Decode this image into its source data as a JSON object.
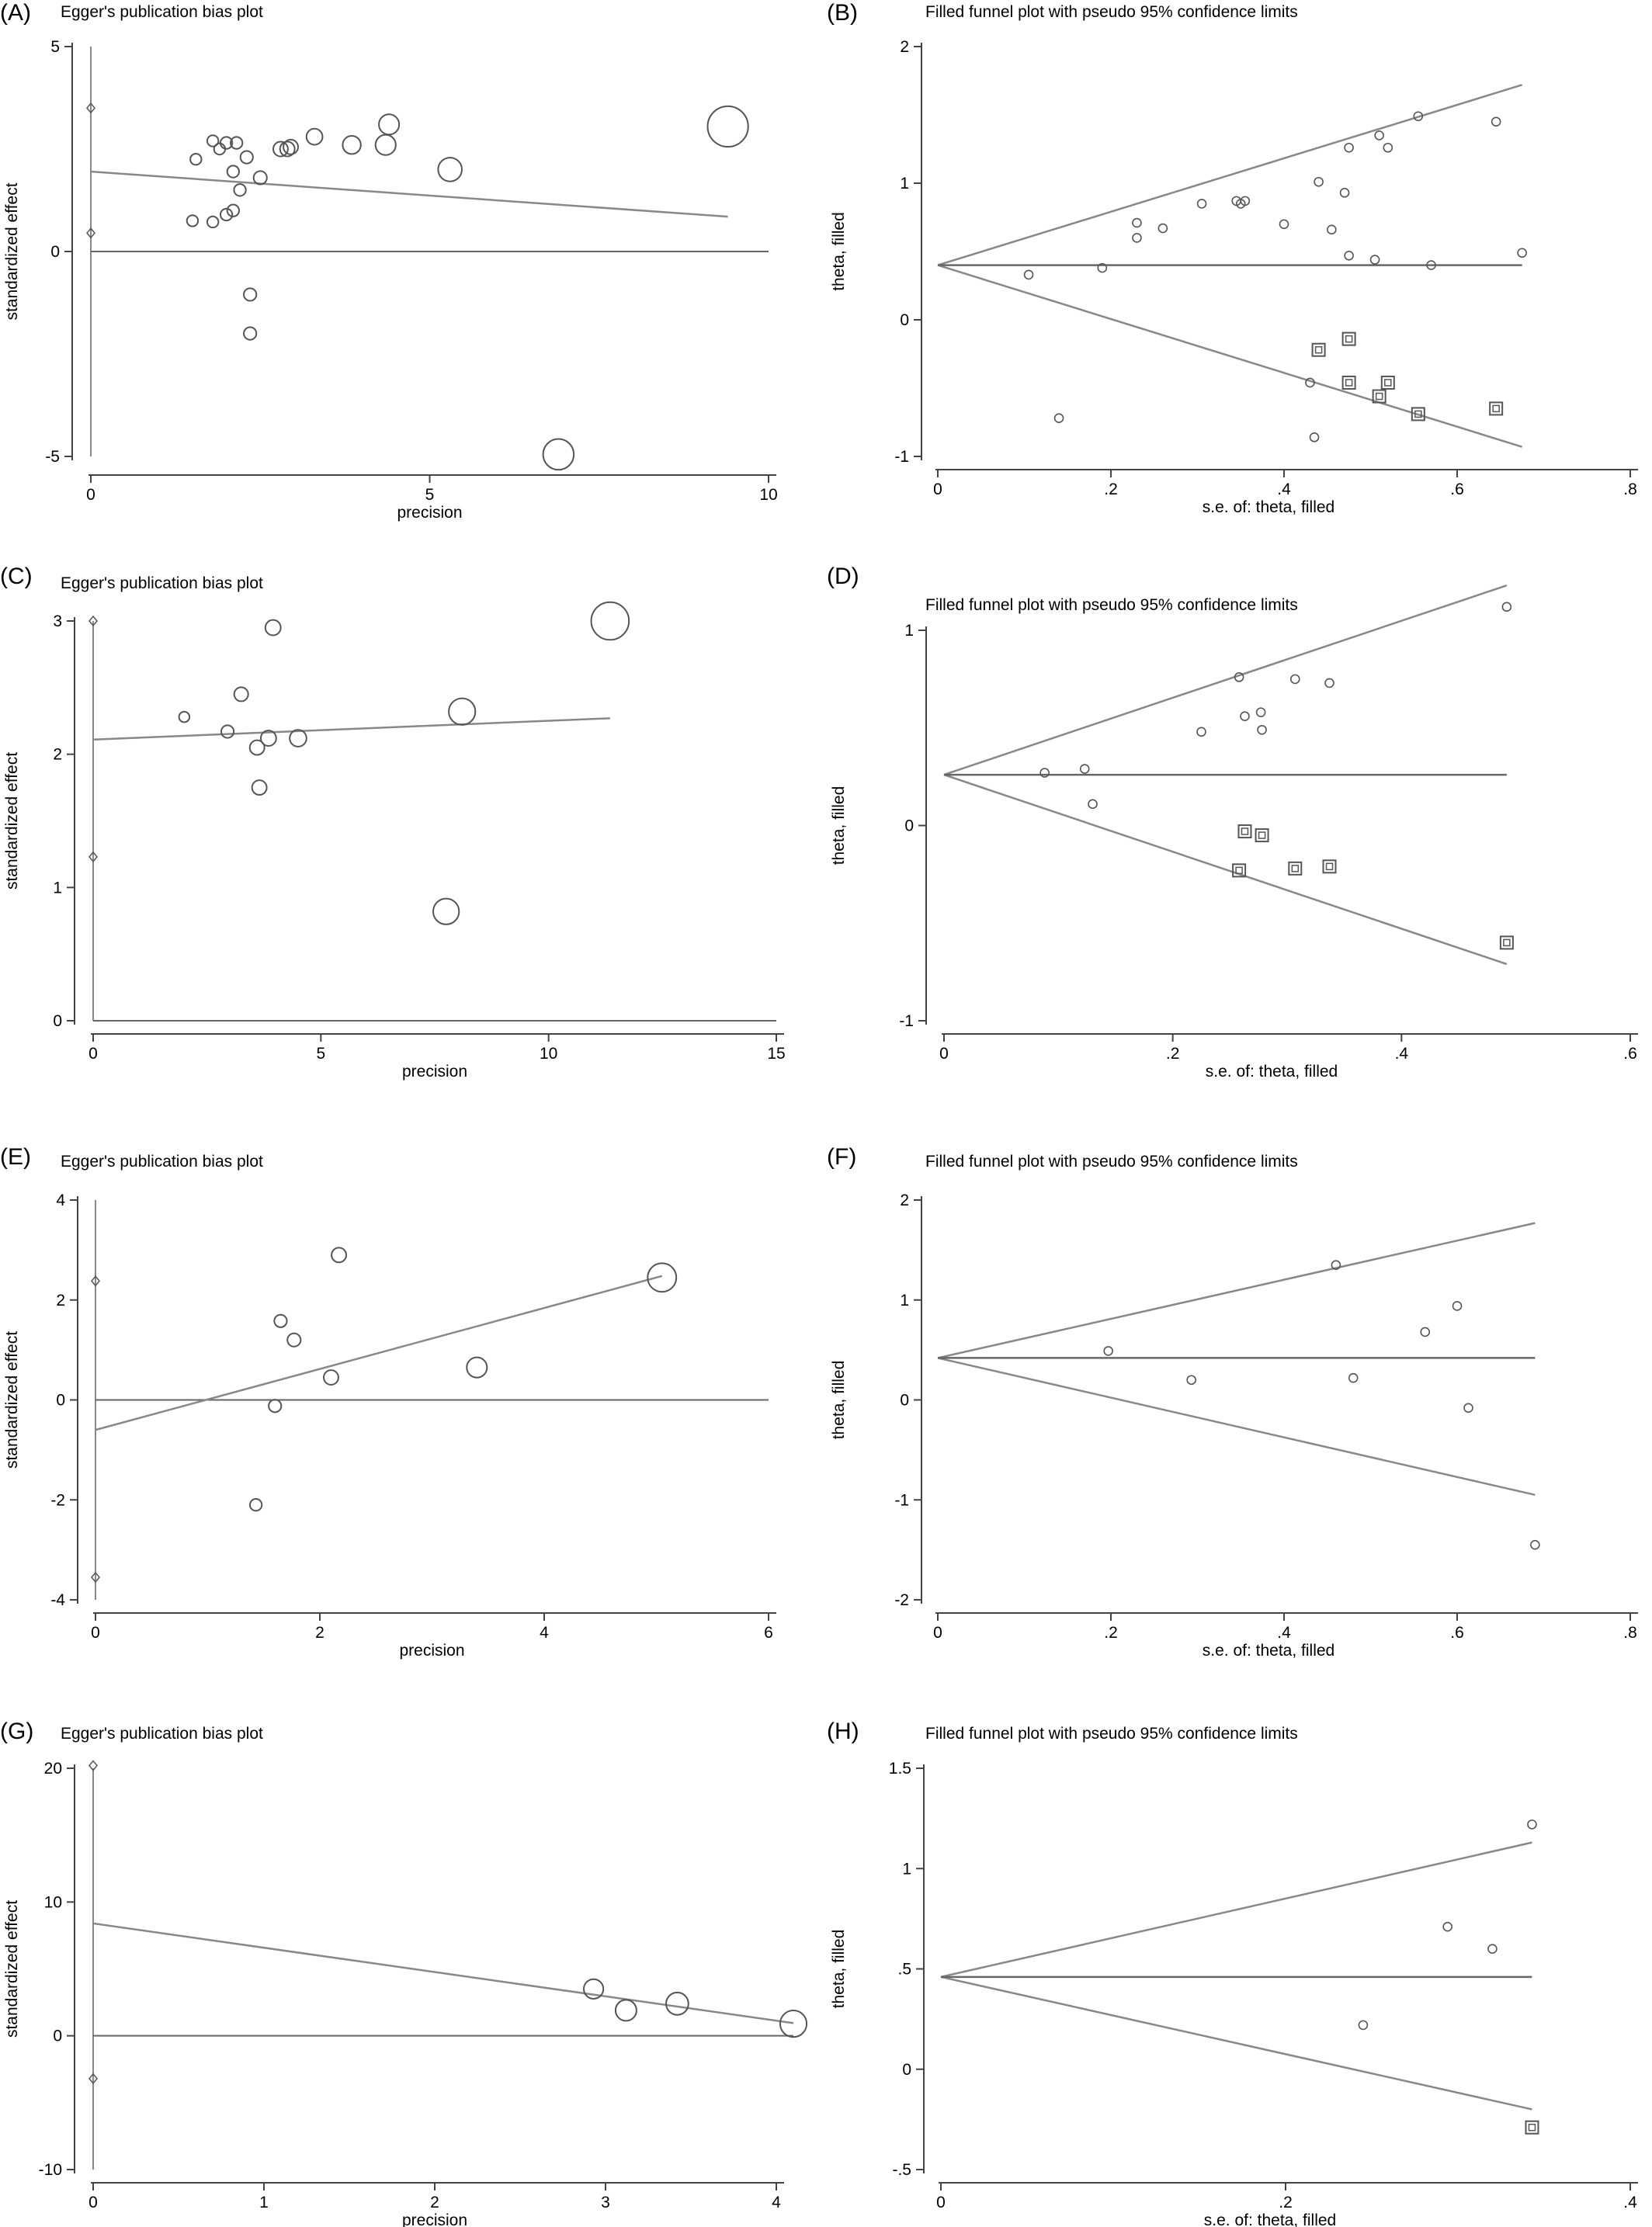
{
  "chart_data": [
    {
      "panel": "(A)",
      "type": "scatter",
      "title": "Egger's publication bias plot",
      "xlabel": "precision",
      "ylabel": "standardized effect",
      "xlim": [
        0,
        10
      ],
      "ylim": [
        -5,
        5
      ],
      "xticks": [
        0,
        5,
        10
      ],
      "yticks": [
        -5,
        0,
        5
      ],
      "points": [
        {
          "x": 1.5,
          "y": 0.75,
          "r": 0.8
        },
        {
          "x": 1.55,
          "y": 2.25,
          "r": 0.8
        },
        {
          "x": 1.8,
          "y": 0.72,
          "r": 0.8
        },
        {
          "x": 1.8,
          "y": 2.7,
          "r": 0.8
        },
        {
          "x": 1.9,
          "y": 2.5,
          "r": 0.8
        },
        {
          "x": 2.0,
          "y": 0.9,
          "r": 0.85
        },
        {
          "x": 2.0,
          "y": 2.65,
          "r": 0.85
        },
        {
          "x": 2.1,
          "y": 1.95,
          "r": 0.85
        },
        {
          "x": 2.1,
          "y": 1.0,
          "r": 0.85
        },
        {
          "x": 2.15,
          "y": 2.65,
          "r": 0.85
        },
        {
          "x": 2.2,
          "y": 1.5,
          "r": 0.85
        },
        {
          "x": 2.3,
          "y": 2.3,
          "r": 0.9
        },
        {
          "x": 2.35,
          "y": -1.05,
          "r": 0.9
        },
        {
          "x": 2.35,
          "y": -2.0,
          "r": 0.9
        },
        {
          "x": 2.5,
          "y": 1.8,
          "r": 0.95
        },
        {
          "x": 2.8,
          "y": 2.5,
          "r": 1.05
        },
        {
          "x": 2.9,
          "y": 2.5,
          "r": 1.05
        },
        {
          "x": 2.95,
          "y": 2.55,
          "r": 1.05
        },
        {
          "x": 3.3,
          "y": 2.8,
          "r": 1.15
        },
        {
          "x": 3.85,
          "y": 2.6,
          "r": 1.3
        },
        {
          "x": 4.35,
          "y": 2.6,
          "r": 1.45
        },
        {
          "x": 4.4,
          "y": 3.1,
          "r": 1.45
        },
        {
          "x": 5.3,
          "y": 2.0,
          "r": 1.7
        },
        {
          "x": 6.9,
          "y": -4.95,
          "r": 2.2
        },
        {
          "x": 9.4,
          "y": 3.05,
          "r": 2.9
        }
      ],
      "fit_line": {
        "x": [
          0,
          9.4
        ],
        "y": [
          1.95,
          0.85
        ]
      },
      "reference_line": {
        "x": [
          0,
          10
        ],
        "y": [
          0,
          0
        ]
      },
      "ci_markers": [
        {
          "x": 0,
          "y": 3.5
        },
        {
          "x": 0,
          "y": 0.45
        }
      ],
      "vertical_line": {
        "x": 0,
        "y": [
          -5,
          5
        ]
      }
    },
    {
      "panel": "(B)",
      "type": "scatter",
      "title": "Filled funnel plot with pseudo 95% confidence limits",
      "xlabel": "s.e. of: theta, filled",
      "ylabel": "theta, filled",
      "xlim": [
        0,
        0.8
      ],
      "ylim": [
        -1,
        2
      ],
      "xticks": [
        0,
        0.2,
        0.4,
        0.6,
        0.8
      ],
      "xtick_labels": [
        "0",
        ".2",
        ".4",
        ".6",
        ".8"
      ],
      "yticks": [
        -1,
        0,
        1,
        2
      ],
      "ytick_labels": [
        "-1",
        "0",
        "1",
        "2"
      ],
      "observed": [
        {
          "x": 0.105,
          "y": 0.33
        },
        {
          "x": 0.14,
          "y": -0.72
        },
        {
          "x": 0.19,
          "y": 0.38
        },
        {
          "x": 0.23,
          "y": 0.71
        },
        {
          "x": 0.23,
          "y": 0.6
        },
        {
          "x": 0.26,
          "y": 0.67
        },
        {
          "x": 0.305,
          "y": 0.85
        },
        {
          "x": 0.345,
          "y": 0.87
        },
        {
          "x": 0.35,
          "y": 0.85
        },
        {
          "x": 0.355,
          "y": 0.87
        },
        {
          "x": 0.4,
          "y": 0.7
        },
        {
          "x": 0.43,
          "y": -0.46
        },
        {
          "x": 0.435,
          "y": -0.86
        },
        {
          "x": 0.44,
          "y": 1.01
        },
        {
          "x": 0.455,
          "y": 0.66
        },
        {
          "x": 0.47,
          "y": 0.93
        },
        {
          "x": 0.475,
          "y": 1.26
        },
        {
          "x": 0.475,
          "y": 0.47
        },
        {
          "x": 0.505,
          "y": 0.44
        },
        {
          "x": 0.51,
          "y": 1.35
        },
        {
          "x": 0.52,
          "y": 1.26
        },
        {
          "x": 0.555,
          "y": 1.49
        },
        {
          "x": 0.57,
          "y": 0.4
        },
        {
          "x": 0.645,
          "y": 1.45
        },
        {
          "x": 0.675,
          "y": 0.49
        }
      ],
      "filled": [
        {
          "x": 0.44,
          "y": -0.22
        },
        {
          "x": 0.475,
          "y": -0.14
        },
        {
          "x": 0.475,
          "y": -0.46
        },
        {
          "x": 0.51,
          "y": -0.56
        },
        {
          "x": 0.52,
          "y": -0.46
        },
        {
          "x": 0.555,
          "y": -0.69
        },
        {
          "x": 0.645,
          "y": -0.65
        }
      ],
      "center": 0.4,
      "ci_end": {
        "x": 0.675,
        "upper": 1.72,
        "lower": -0.93
      }
    },
    {
      "panel": "(C)",
      "type": "scatter",
      "title": "Egger's publication bias plot",
      "xlabel": "precision",
      "ylabel": "standardized effect",
      "xlim": [
        0,
        15
      ],
      "ylim": [
        0,
        3
      ],
      "xticks": [
        0,
        5,
        10,
        15
      ],
      "yticks": [
        0,
        1,
        2,
        3
      ],
      "points": [
        {
          "x": 2.0,
          "y": 2.28,
          "r": 0.75
        },
        {
          "x": 2.95,
          "y": 2.17,
          "r": 0.9
        },
        {
          "x": 3.25,
          "y": 2.45,
          "r": 1.0
        },
        {
          "x": 3.6,
          "y": 2.05,
          "r": 1.05
        },
        {
          "x": 3.65,
          "y": 1.75,
          "r": 1.05
        },
        {
          "x": 3.85,
          "y": 2.12,
          "r": 1.1
        },
        {
          "x": 3.95,
          "y": 2.95,
          "r": 1.1
        },
        {
          "x": 4.5,
          "y": 2.12,
          "r": 1.2
        },
        {
          "x": 7.75,
          "y": 0.82,
          "r": 1.85
        },
        {
          "x": 8.1,
          "y": 2.32,
          "r": 1.9
        },
        {
          "x": 11.35,
          "y": 3.0,
          "r": 2.7
        }
      ],
      "fit_line": {
        "x": [
          0,
          11.35
        ],
        "y": [
          2.11,
          2.27
        ]
      },
      "reference_line": {
        "x": [
          0,
          15
        ],
        "y": [
          0,
          0
        ]
      },
      "ci_markers": [
        {
          "x": 0,
          "y": 3.0
        },
        {
          "x": 0,
          "y": 1.23
        }
      ],
      "vertical_line": {
        "x": 0,
        "y": [
          0,
          3
        ]
      }
    },
    {
      "panel": "(D)",
      "type": "scatter",
      "title": "Filled funnel plot with pseudo 95% confidence limits",
      "xlabel": "s.e. of: theta, filled",
      "ylabel": "theta, filled",
      "xlim": [
        0,
        0.6
      ],
      "ylim": [
        -1,
        1
      ],
      "xticks": [
        0,
        0.2,
        0.4,
        0.6
      ],
      "xtick_labels": [
        "0",
        ".2",
        ".4",
        ".6"
      ],
      "yticks": [
        -1,
        0,
        1
      ],
      "ytick_labels": [
        "-1",
        "0",
        "1"
      ],
      "observed": [
        {
          "x": 0.088,
          "y": 0.27
        },
        {
          "x": 0.123,
          "y": 0.29
        },
        {
          "x": 0.13,
          "y": 0.11
        },
        {
          "x": 0.225,
          "y": 0.48
        },
        {
          "x": 0.258,
          "y": 0.76
        },
        {
          "x": 0.263,
          "y": 0.56
        },
        {
          "x": 0.277,
          "y": 0.58
        },
        {
          "x": 0.278,
          "y": 0.49
        },
        {
          "x": 0.307,
          "y": 0.75
        },
        {
          "x": 0.337,
          "y": 0.73
        },
        {
          "x": 0.492,
          "y": 1.12
        }
      ],
      "filled": [
        {
          "x": 0.258,
          "y": -0.23
        },
        {
          "x": 0.263,
          "y": -0.03
        },
        {
          "x": 0.278,
          "y": -0.05
        },
        {
          "x": 0.307,
          "y": -0.22
        },
        {
          "x": 0.337,
          "y": -0.21
        },
        {
          "x": 0.492,
          "y": -0.6
        }
      ],
      "center": 0.26,
      "ci_end": {
        "x": 0.492,
        "upper": 1.23,
        "lower": -0.71
      }
    },
    {
      "panel": "(E)",
      "type": "scatter",
      "title": "Egger's publication bias plot",
      "xlabel": "precision",
      "ylabel": "standardized effect",
      "xlim": [
        0,
        6
      ],
      "ylim": [
        -4,
        4
      ],
      "xticks": [
        0,
        2,
        4,
        6
      ],
      "yticks": [
        -4,
        -2,
        0,
        2,
        4
      ],
      "points": [
        {
          "x": 1.43,
          "y": -2.1,
          "r": 0.85
        },
        {
          "x": 1.6,
          "y": -0.12,
          "r": 0.9
        },
        {
          "x": 1.65,
          "y": 1.58,
          "r": 0.9
        },
        {
          "x": 1.77,
          "y": 1.2,
          "r": 0.95
        },
        {
          "x": 2.1,
          "y": 0.45,
          "r": 1.05
        },
        {
          "x": 2.17,
          "y": 2.9,
          "r": 1.05
        },
        {
          "x": 3.4,
          "y": 0.65,
          "r": 1.45
        },
        {
          "x": 5.05,
          "y": 2.45,
          "r": 2.05
        }
      ],
      "fit_line": {
        "x": [
          0,
          5.05
        ],
        "y": [
          -0.6,
          2.48
        ]
      },
      "reference_line": {
        "x": [
          0,
          6
        ],
        "y": [
          0,
          0
        ]
      },
      "ci_markers": [
        {
          "x": 0,
          "y": 2.38
        },
        {
          "x": 0,
          "y": -3.55
        }
      ],
      "vertical_line": {
        "x": 0,
        "y": [
          -4,
          4
        ]
      }
    },
    {
      "panel": "(F)",
      "type": "scatter",
      "title": "Filled funnel plot with pseudo 95% confidence limits",
      "xlabel": "s.e. of: theta, filled",
      "ylabel": "theta, filled",
      "xlim": [
        0,
        0.8
      ],
      "ylim": [
        -2,
        2
      ],
      "xticks": [
        0,
        0.2,
        0.4,
        0.6,
        0.8
      ],
      "xtick_labels": [
        "0",
        ".2",
        ".4",
        ".6",
        ".8"
      ],
      "yticks": [
        -2,
        -1,
        0,
        1,
        2
      ],
      "ytick_labels": [
        "-2",
        "-1",
        "0",
        "1",
        "2"
      ],
      "observed": [
        {
          "x": 0.197,
          "y": 0.49
        },
        {
          "x": 0.293,
          "y": 0.2
        },
        {
          "x": 0.46,
          "y": 1.35
        },
        {
          "x": 0.48,
          "y": 0.22
        },
        {
          "x": 0.563,
          "y": 0.68
        },
        {
          "x": 0.6,
          "y": 0.94
        },
        {
          "x": 0.613,
          "y": -0.08
        },
        {
          "x": 0.69,
          "y": -1.45
        }
      ],
      "filled": [],
      "center": 0.42,
      "ci_end": {
        "x": 0.69,
        "upper": 1.77,
        "lower": -0.95
      }
    },
    {
      "panel": "(G)",
      "type": "scatter",
      "title": "Egger's publication bias plot",
      "xlabel": "precision",
      "ylabel": "standardized effect",
      "xlim": [
        0,
        4
      ],
      "ylim": [
        -10,
        20
      ],
      "xticks": [
        0,
        1,
        2,
        3,
        4
      ],
      "yticks": [
        -10,
        0,
        10,
        20
      ],
      "points": [
        {
          "x": 2.93,
          "y": 3.5,
          "r": 1.4
        },
        {
          "x": 3.12,
          "y": 1.9,
          "r": 1.5
        },
        {
          "x": 3.42,
          "y": 2.4,
          "r": 1.6
        },
        {
          "x": 4.1,
          "y": 0.9,
          "r": 1.9
        }
      ],
      "fit_line": {
        "x": [
          0,
          4.1
        ],
        "y": [
          8.4,
          0.95
        ]
      },
      "reference_line": {
        "x": [
          0,
          4.1
        ],
        "y": [
          0,
          0
        ]
      },
      "ci_markers": [
        {
          "x": 0,
          "y": 20.2
        },
        {
          "x": 0,
          "y": -3.2
        }
      ],
      "vertical_line": {
        "x": 0,
        "y": [
          -10,
          20
        ]
      }
    },
    {
      "panel": "(H)",
      "type": "scatter",
      "title": "Filled funnel plot with pseudo 95% confidence limits",
      "xlabel": "s.e. of: theta, filled",
      "ylabel": "theta, filled",
      "xlim": [
        0,
        0.4
      ],
      "ylim": [
        -0.5,
        1.5
      ],
      "xticks": [
        0,
        0.2,
        0.4
      ],
      "xtick_labels": [
        "0",
        ".2",
        ".4"
      ],
      "yticks": [
        -0.5,
        0,
        0.5,
        1,
        1.5
      ],
      "ytick_labels": [
        "-.5",
        "0",
        ".5",
        "1",
        "1.5"
      ],
      "observed": [
        {
          "x": 0.245,
          "y": 0.22
        },
        {
          "x": 0.294,
          "y": 0.71
        },
        {
          "x": 0.32,
          "y": 0.6
        },
        {
          "x": 0.343,
          "y": 1.22
        }
      ],
      "filled": [
        {
          "x": 0.343,
          "y": -0.29
        }
      ],
      "center": 0.46,
      "ci_end": {
        "x": 0.343,
        "upper": 1.13,
        "lower": -0.2
      }
    }
  ]
}
